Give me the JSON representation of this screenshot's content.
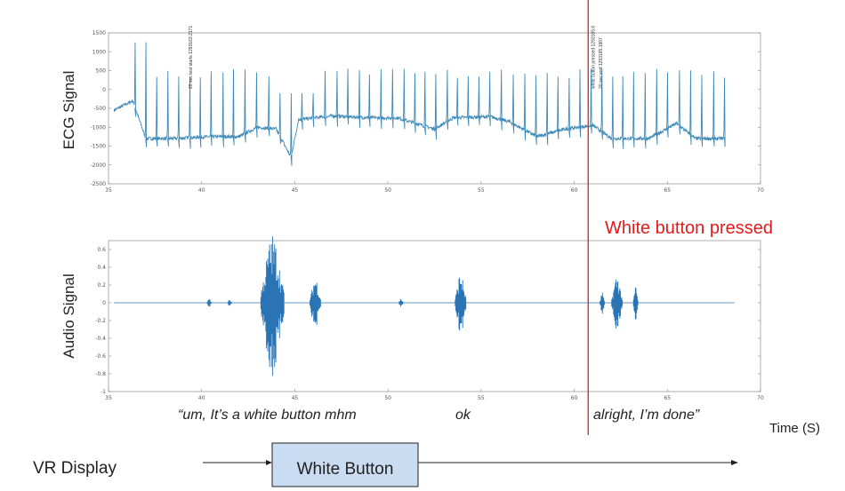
{
  "chart_data": [
    {
      "type": "line",
      "ylabel": "ECG Signal",
      "xlim": [
        35,
        70
      ],
      "ylim": [
        -2500,
        1500
      ],
      "xticks": [
        35,
        40,
        45,
        50,
        55,
        60,
        65,
        70
      ],
      "yticks": [
        1500,
        1000,
        500,
        0,
        -500,
        -1000,
        -1500,
        -2000,
        -2500
      ],
      "x_range": [
        35.3,
        68.1
      ],
      "baseline_levels": [
        [
          35.3,
          -550
        ],
        [
          36.3,
          -300
        ],
        [
          37.0,
          -1300
        ],
        [
          38.5,
          -1300
        ],
        [
          40.5,
          -1250
        ],
        [
          42.0,
          -1250
        ],
        [
          43.0,
          -1000
        ],
        [
          44.0,
          -1050
        ],
        [
          44.8,
          -1800
        ],
        [
          45.2,
          -800
        ],
        [
          47.0,
          -700
        ],
        [
          49.0,
          -750
        ],
        [
          50.5,
          -750
        ],
        [
          51.5,
          -900
        ],
        [
          52.5,
          -1050
        ],
        [
          53.5,
          -750
        ],
        [
          55.5,
          -720
        ],
        [
          56.5,
          -850
        ],
        [
          58.0,
          -1250
        ],
        [
          59.5,
          -1050
        ],
        [
          61.0,
          -950
        ],
        [
          62.0,
          -1300
        ],
        [
          64.0,
          -1300
        ],
        [
          65.5,
          -900
        ],
        [
          66.5,
          -1300
        ],
        [
          68.1,
          -1300
        ]
      ],
      "annotations": [
        {
          "x": 39.4,
          "text": "20 sec test starts 1293163.2171"
        },
        {
          "x": 61.0,
          "text": "white button pressed 1293185.6"
        },
        {
          "x": 61.4,
          "text": "20 sec end 1293185.1907"
        }
      ]
    },
    {
      "type": "line",
      "ylabel": "Audio Signal",
      "xlim": [
        35,
        70
      ],
      "ylim": [
        -1,
        0.7
      ],
      "xticks": [
        35,
        40,
        45,
        50,
        55,
        60,
        65,
        70
      ],
      "yticks": [
        0.6,
        0.4,
        0.2,
        0,
        -0.2,
        -0.4,
        -0.6,
        -0.8,
        -1
      ],
      "x_range": [
        35.3,
        68.6
      ],
      "bursts": [
        {
          "x": 40.4,
          "amp": 0.05
        },
        {
          "x": 41.5,
          "amp": 0.04
        },
        {
          "x": 43.8,
          "amp": 0.78
        },
        {
          "x": 46.1,
          "amp": 0.3
        },
        {
          "x": 50.7,
          "amp": 0.05
        },
        {
          "x": 53.9,
          "amp": 0.35
        },
        {
          "x": 61.5,
          "amp": 0.12
        },
        {
          "x": 62.3,
          "amp": 0.32
        },
        {
          "x": 63.3,
          "amp": 0.2
        }
      ]
    }
  ],
  "event": {
    "x": 60.75,
    "label": "White button pressed",
    "color": "#e11b1b"
  },
  "captions": {
    "left": "“um, It’s a white button mhm",
    "middle": "ok",
    "right": "alright, I’m done”"
  },
  "time_label": "Time (S)",
  "vr": {
    "label": "VR Display",
    "button_label": "White Button"
  },
  "colors": {
    "ecg": "#3d8ab8",
    "audio": "#2a74b5",
    "event": "#e11b1b",
    "button_fill": "#c9dcf1"
  }
}
